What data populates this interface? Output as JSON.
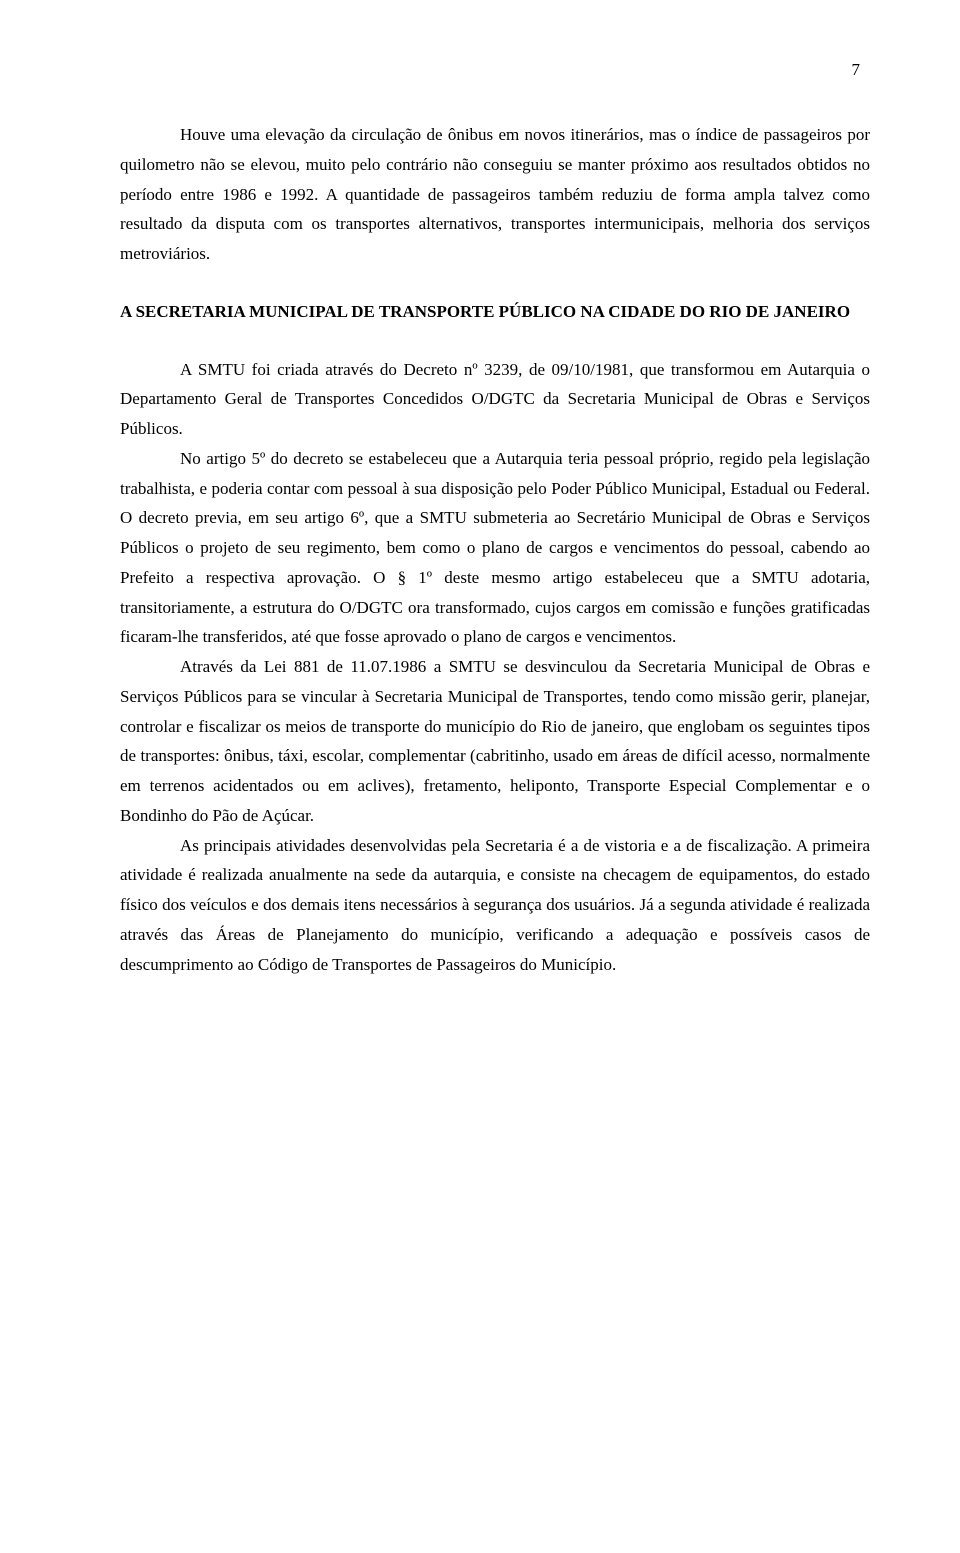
{
  "page_number": "7",
  "paragraphs": {
    "p1": "Houve uma elevação da circulação de ônibus em novos itinerários, mas o índice de passageiros por quilometro não se elevou, muito pelo contrário não conseguiu se manter próximo aos resultados obtidos no período entre 1986 e 1992. A quantidade de passageiros também reduziu de forma ampla talvez como resultado da disputa com os transportes alternativos, transportes intermunicipais, melhoria dos serviços metroviários.",
    "heading": "A SECRETARIA MUNICIPAL DE TRANSPORTE PÚBLICO NA CIDADE DO RIO DE JANEIRO",
    "p2": "A SMTU foi criada através do Decreto nº 3239, de 09/10/1981, que transformou em Autarquia o Departamento Geral de Transportes Concedidos O/DGTC da Secretaria Municipal de Obras e Serviços Públicos.",
    "p3": "No artigo 5º do decreto se estabeleceu que a Autarquia teria pessoal próprio, regido pela legislação trabalhista, e poderia contar com pessoal à sua disposição pelo Poder Público Municipal, Estadual ou Federal. O decreto previa, em seu artigo 6º, que a SMTU submeteria ao Secretário Municipal de Obras e Serviços Públicos o projeto de seu regimento, bem como o plano de cargos e vencimentos do pessoal, cabendo ao Prefeito a respectiva aprovação. O § 1º deste mesmo artigo estabeleceu que a SMTU adotaria, transitoriamente, a estrutura do O/DGTC ora transformado, cujos cargos em comissão e funções gratificadas ficaram-lhe transferidos, até que fosse aprovado o plano de cargos e vencimentos.",
    "p4": "Através da Lei 881 de 11.07.1986 a SMTU se desvinculou da Secretaria Municipal de Obras e Serviços Públicos para se vincular à Secretaria Municipal de Transportes, tendo como missão gerir, planejar, controlar e fiscalizar os meios de transporte do município do Rio de janeiro, que englobam os seguintes tipos de transportes: ônibus, táxi, escolar, complementar (cabritinho, usado em áreas de difícil acesso, normalmente em terrenos acidentados ou em aclives), fretamento, heliponto, Transporte Especial Complementar e o Bondinho do Pão de Açúcar.",
    "p5": "As principais atividades desenvolvidas pela Secretaria é a de vistoria e a de fiscalização. A primeira atividade é realizada anualmente na sede da autarquia, e consiste na checagem de equipamentos, do estado físico dos veículos e dos demais itens necessários à segurança dos usuários. Já a segunda atividade é realizada através das Áreas de Planejamento do município, verificando a adequação e possíveis casos de descumprimento ao Código de Transportes de Passageiros do Município."
  }
}
